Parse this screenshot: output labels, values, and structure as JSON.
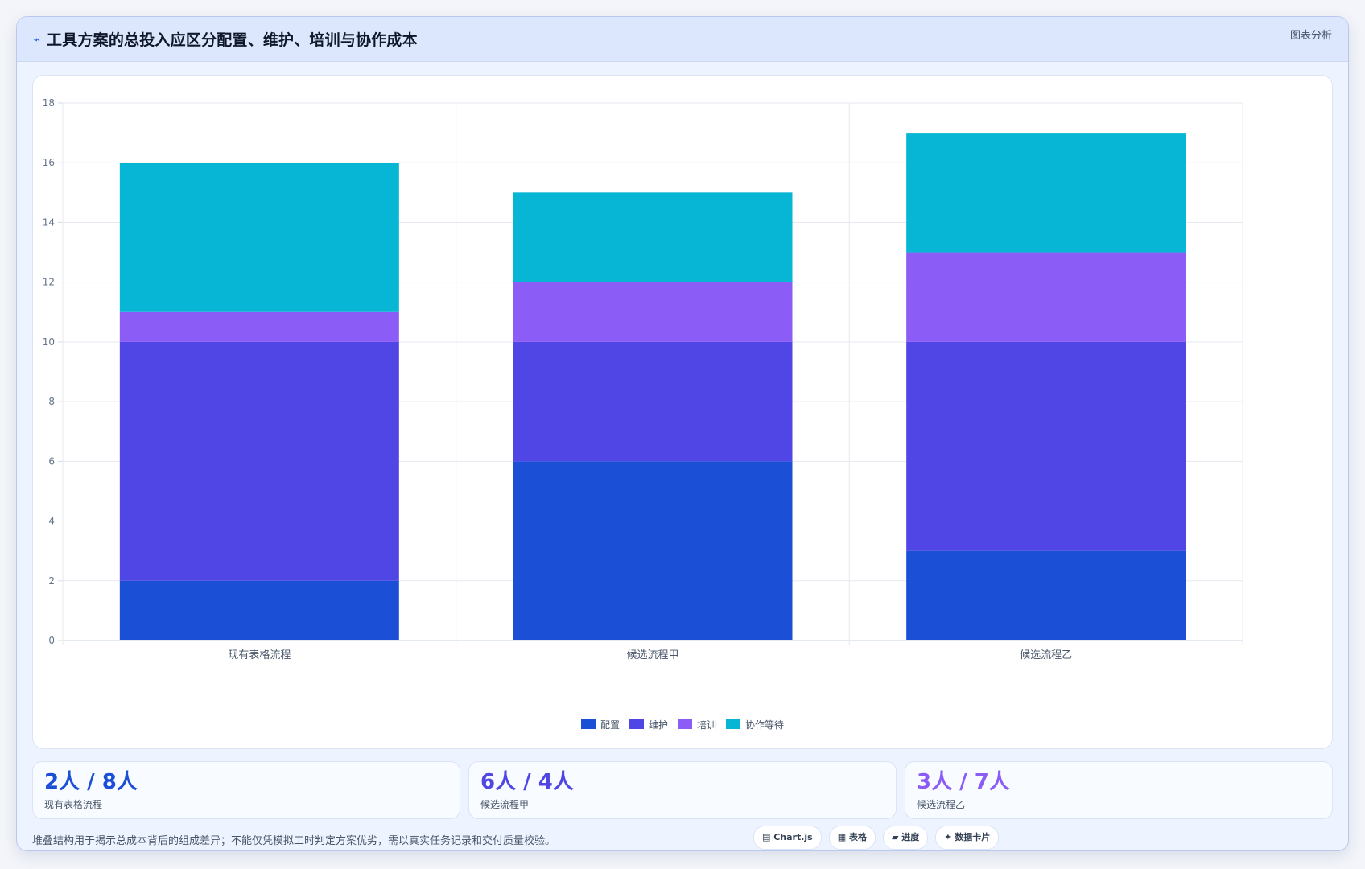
{
  "header": {
    "icon": "trend-icon",
    "title": "工具方案的总投入应区分配置、维护、培训与协作成本",
    "tag": "图表分析"
  },
  "colors": {
    "config": "#1b4fd6",
    "maintain": "#4f46e5",
    "train": "#8b5cf6",
    "wait": "#06b6d4"
  },
  "chart_data": {
    "type": "bar",
    "stacked": true,
    "categories": [
      "现有表格流程",
      "候选流程甲",
      "候选流程乙"
    ],
    "series": [
      {
        "name": "配置",
        "values": [
          2,
          6,
          3
        ]
      },
      {
        "name": "维护",
        "values": [
          8,
          4,
          7
        ]
      },
      {
        "name": "培训",
        "values": [
          1,
          2,
          3
        ]
      },
      {
        "name": "协作等待",
        "values": [
          5,
          3,
          4
        ]
      }
    ],
    "ylim": [
      0,
      18
    ],
    "yticks": [
      0,
      2,
      4,
      6,
      8,
      10,
      12,
      14,
      16,
      18
    ],
    "grid": true,
    "legend": "bottom"
  },
  "stats": [
    {
      "value": "2人 / 8人",
      "label": "现有表格流程",
      "color": "#1b4fd6"
    },
    {
      "value": "6人 / 4人",
      "label": "候选流程甲",
      "color": "#4f46e5"
    },
    {
      "value": "3人 / 7人",
      "label": "候选流程乙",
      "color": "#8b5cf6"
    }
  ],
  "footnote": "堆叠结构用于揭示总成本背后的组成差异；不能仅凭模拟工时判定方案优劣，需以真实任务记录和交付质量校验。",
  "chips": [
    "▤ Chart.js",
    "▦ 表格",
    "▰ 进度",
    "✦ 数据卡片"
  ]
}
